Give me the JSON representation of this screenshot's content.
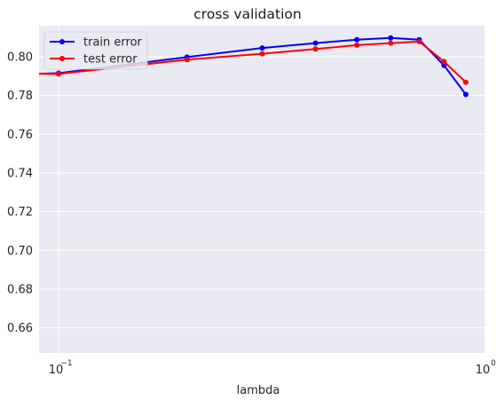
{
  "chart_data": {
    "type": "line",
    "title": "cross validation",
    "xlabel": "lambda",
    "ylabel": "",
    "xscale": "log",
    "xlim": [
      0.09,
      1.0
    ],
    "ylim": [
      0.647,
      0.816
    ],
    "grid": true,
    "background": "#eaeaf2",
    "legend_position": "top-left",
    "x_ticks": [
      {
        "value": 0.1,
        "base": "10",
        "exp": "−1"
      },
      {
        "value": 1.0,
        "base": "10",
        "exp": "0"
      }
    ],
    "y_ticks": [
      0.66,
      0.68,
      0.7,
      0.72,
      0.74,
      0.76,
      0.78,
      0.8
    ],
    "y_tick_labels": [
      "0.66",
      "0.68",
      "0.70",
      "0.72",
      "0.74",
      "0.76",
      "0.78",
      "0.80"
    ],
    "series": [
      {
        "name": "train error",
        "color": "#0000ff",
        "x": [
          0.1,
          0.2,
          0.3,
          0.4,
          0.5,
          0.6,
          0.7,
          0.8,
          0.9
        ],
        "y": [
          0.7915,
          0.7998,
          0.8045,
          0.807,
          0.8088,
          0.8097,
          0.8088,
          0.7955,
          0.7805
        ]
      },
      {
        "name": "test error",
        "color": "#ff0000",
        "x": [
          0.1,
          0.2,
          0.3,
          0.4,
          0.5,
          0.6,
          0.7,
          0.8,
          0.9
        ],
        "y": [
          0.7911,
          0.7985,
          0.8015,
          0.804,
          0.806,
          0.807,
          0.8078,
          0.7975,
          0.7868
        ]
      }
    ],
    "line_extends_left_to": {
      "x": 0.09,
      "y": 0.7912
    }
  }
}
